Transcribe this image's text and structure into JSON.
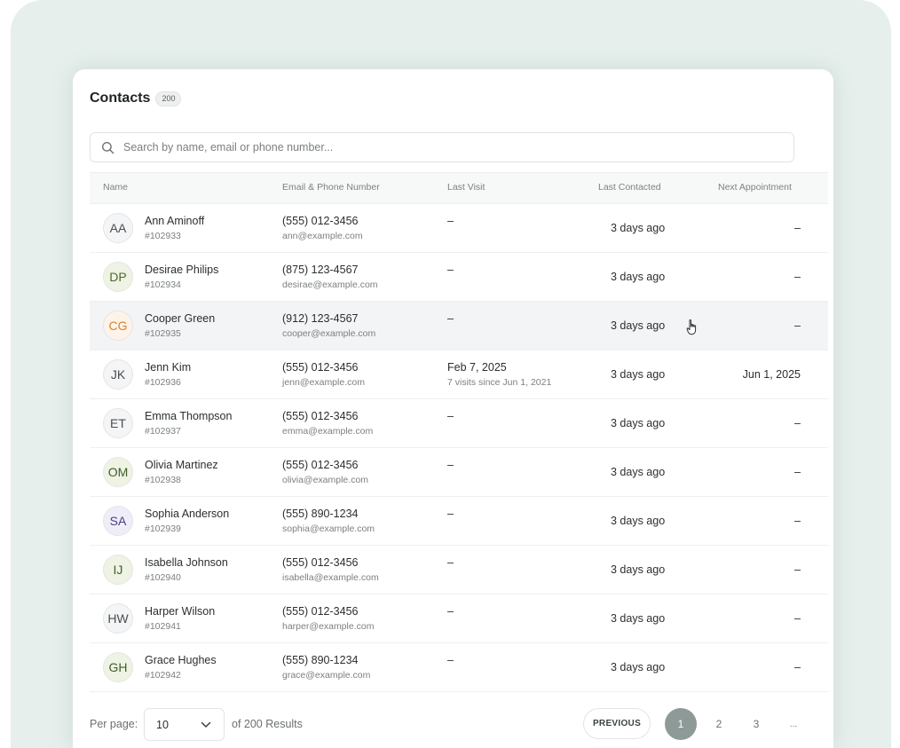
{
  "contacts": {
    "title": "Contacts",
    "count": "200",
    "search_placeholder": "Search by name, email or phone number...",
    "columns": {
      "name": "Name",
      "email_phone": "Email & Phone Number",
      "last_visit": "Last Visit",
      "last_contacted": "Last Contacted",
      "next_appointment": "Next Appointment"
    },
    "rows": [
      {
        "initials": "AA",
        "name": "Ann Aminoff",
        "id": "#102933",
        "phone": "(555) 012-3456",
        "email": "ann@example.com",
        "last_visit": "–",
        "last_visit_sub": "",
        "last_contacted": "3 days ago",
        "next_appointment": "–",
        "avatar_bg": "#f4f5f6",
        "avatar_fg": "#4a4f4d"
      },
      {
        "initials": "DP",
        "name": "Desirae Philips",
        "id": "#102934",
        "phone": "(875) 123-4567",
        "email": "desirae@example.com",
        "last_visit": "–",
        "last_visit_sub": "",
        "last_contacted": "3 days ago",
        "next_appointment": "–",
        "avatar_bg": "#eef3e4",
        "avatar_fg": "#4c6b2e"
      },
      {
        "initials": "CG",
        "name": "Cooper Green",
        "id": "#102935",
        "phone": "(912) 123-4567",
        "email": "cooper@example.com",
        "last_visit": "–",
        "last_visit_sub": "",
        "last_contacted": "3 days ago",
        "next_appointment": "–",
        "avatar_bg": "#fdf3e8",
        "avatar_fg": "#d9822b"
      },
      {
        "initials": "JK",
        "name": "Jenn Kim",
        "id": "#102936",
        "phone": "(555) 012-3456",
        "email": "jenn@example.com",
        "last_visit": "Feb 7, 2025",
        "last_visit_sub": "7 visits since Jun 1, 2021",
        "last_contacted": "3 days ago",
        "next_appointment": "Jun 1, 2025",
        "avatar_bg": "#f4f5f6",
        "avatar_fg": "#4a4f4d"
      },
      {
        "initials": "ET",
        "name": "Emma Thompson",
        "id": "#102937",
        "phone": "(555) 012-3456",
        "email": "emma@example.com",
        "last_visit": "–",
        "last_visit_sub": "",
        "last_contacted": "3 days ago",
        "next_appointment": "–",
        "avatar_bg": "#f4f5f6",
        "avatar_fg": "#4a4f4d"
      },
      {
        "initials": "OM",
        "name": "Olivia Martinez",
        "id": "#102938",
        "phone": "(555) 012-3456",
        "email": "olivia@example.com",
        "last_visit": "–",
        "last_visit_sub": "",
        "last_contacted": "3 days ago",
        "next_appointment": "–",
        "avatar_bg": "#eef3e4",
        "avatar_fg": "#3f5d2a"
      },
      {
        "initials": "SA",
        "name": "Sophia Anderson",
        "id": "#102939",
        "phone": "(555) 890-1234",
        "email": "sophia@example.com",
        "last_visit": "–",
        "last_visit_sub": "",
        "last_contacted": "3 days ago",
        "next_appointment": "–",
        "avatar_bg": "#efedf7",
        "avatar_fg": "#4b3f8a"
      },
      {
        "initials": "IJ",
        "name": "Isabella Johnson",
        "id": "#102940",
        "phone": "(555) 012-3456",
        "email": "isabella@example.com",
        "last_visit": "–",
        "last_visit_sub": "",
        "last_contacted": "3 days ago",
        "next_appointment": "–",
        "avatar_bg": "#eef3e4",
        "avatar_fg": "#3f5d2a"
      },
      {
        "initials": "HW",
        "name": "Harper Wilson",
        "id": "#102941",
        "phone": "(555) 012-3456",
        "email": "harper@example.com",
        "last_visit": "–",
        "last_visit_sub": "",
        "last_contacted": "3 days ago",
        "next_appointment": "–",
        "avatar_bg": "#f4f5f6",
        "avatar_fg": "#4a4f4d"
      },
      {
        "initials": "GH",
        "name": "Grace Hughes",
        "id": "#102942",
        "phone": "(555) 890-1234",
        "email": "grace@example.com",
        "last_visit": "–",
        "last_visit_sub": "",
        "last_contacted": "3 days ago",
        "next_appointment": "–",
        "avatar_bg": "#eef3e4",
        "avatar_fg": "#3f5d2a"
      }
    ],
    "highlighted_row": 2
  },
  "pagination": {
    "per_page_label": "Per page:",
    "per_page_value": "10",
    "results_text": "of 200 Results",
    "previous_label": "PREVIOUS",
    "pages": [
      "1",
      "2",
      "3",
      "..."
    ],
    "active_page": "1"
  },
  "colors": {
    "background": "#e6efeb",
    "active_page": "#8e9a97",
    "row_highlight": "#f2f4f5"
  }
}
